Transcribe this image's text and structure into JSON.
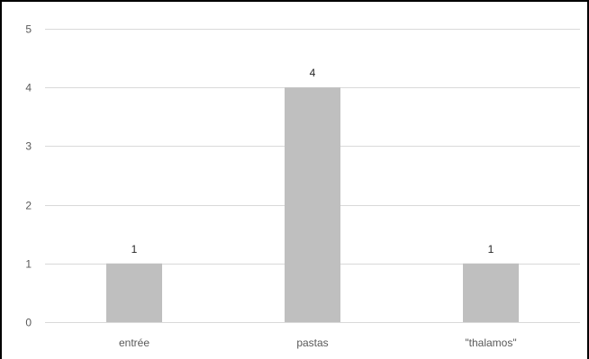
{
  "chart_data": {
    "type": "bar",
    "title": "",
    "xlabel": "",
    "ylabel": "",
    "categories": [
      "entrée",
      "pastas",
      "\"thalamos\""
    ],
    "values": [
      1,
      4,
      1
    ],
    "data_labels": [
      "1",
      "4",
      "1"
    ],
    "ylim": [
      0,
      5
    ],
    "yticks": [
      0,
      1,
      2,
      3,
      4,
      5
    ],
    "ytick_labels": [
      "0",
      "1",
      "2",
      "3",
      "4",
      "5"
    ],
    "grid": true,
    "legend": "none",
    "bar_color": "#bfbfbf",
    "grid_color": "#d9d9d9",
    "axis_color": "#d9d9d9"
  }
}
